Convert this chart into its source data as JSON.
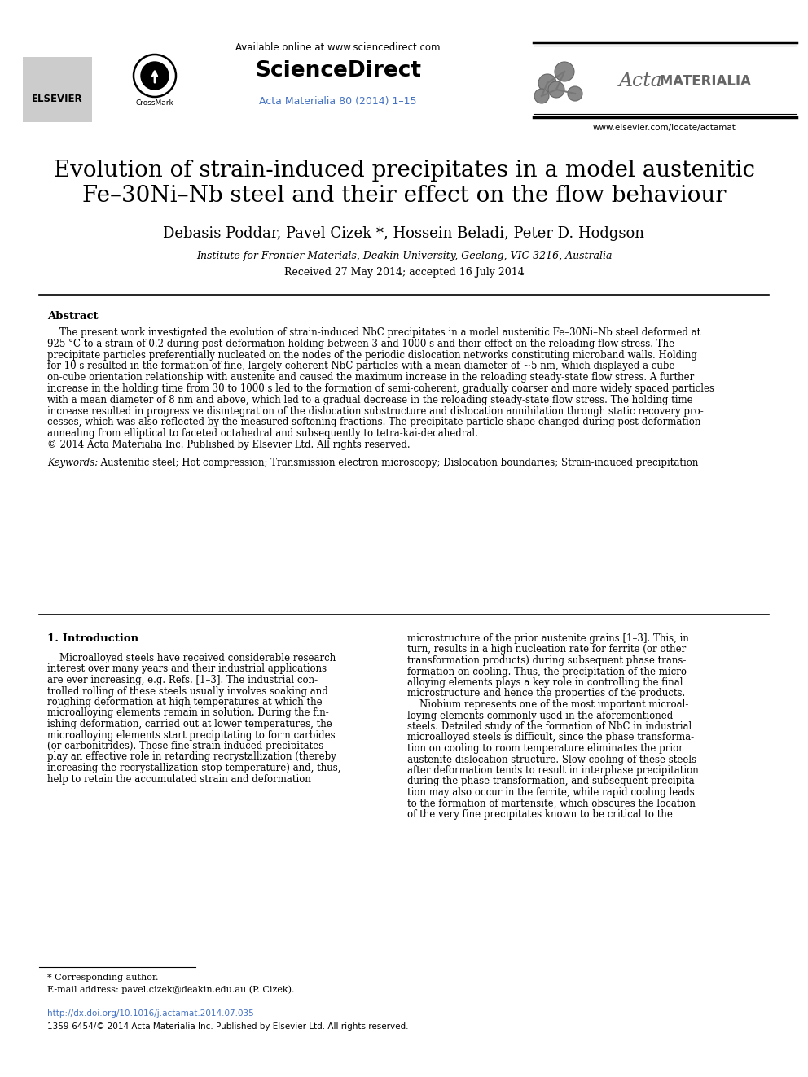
{
  "title_line1": "Evolution of strain-induced precipitates in a model austenitic",
  "title_line2": "Fe–30Ni–Nb steel and their effect on the flow behaviour",
  "authors": "Debasis Poddar, Pavel Cizek *, Hossein Beladi, Peter D. Hodgson",
  "affiliation": "Institute for Frontier Materials, Deakin University, Geelong, VIC 3216, Australia",
  "received": "Received 27 May 2014; accepted 16 July 2014",
  "available_online": "Available online at www.sciencedirect.com",
  "sciencedirect": "ScienceDirect",
  "journal_ref": "Acta Materialia 80 (2014) 1–15",
  "website": "www.elsevier.com/locate/actamat",
  "abstract_title": "Abstract",
  "abstract_lines": [
    "    The present work investigated the evolution of strain-induced NbC precipitates in a model austenitic Fe–30Ni–Nb steel deformed at",
    "925 °C to a strain of 0.2 during post-deformation holding between 3 and 1000 s and their effect on the reloading flow stress. The",
    "precipitate particles preferentially nucleated on the nodes of the periodic dislocation networks constituting microband walls. Holding",
    "for 10 s resulted in the formation of fine, largely coherent NbC particles with a mean diameter of ∼5 nm, which displayed a cube-",
    "on-cube orientation relationship with austenite and caused the maximum increase in the reloading steady-state flow stress. A further",
    "increase in the holding time from 30 to 1000 s led to the formation of semi-coherent, gradually coarser and more widely spaced particles",
    "with a mean diameter of 8 nm and above, which led to a gradual decrease in the reloading steady-state flow stress. The holding time",
    "increase resulted in progressive disintegration of the dislocation substructure and dislocation annihilation through static recovery pro-",
    "cesses, which was also reflected by the measured softening fractions. The precipitate particle shape changed during post-deformation",
    "annealing from elliptical to faceted octahedral and subsequently to tetra-kai-decahedral.",
    "© 2014 Acta Materialia Inc. Published by Elsevier Ltd. All rights reserved."
  ],
  "keywords_label": "Keywords:",
  "keywords_text": "  Austenitic steel; Hot compression; Transmission electron microscopy; Dislocation boundaries; Strain-induced precipitation",
  "section1_title": "1. Introduction",
  "intro_col1_lines": [
    "    Microalloyed steels have received considerable research",
    "interest over many years and their industrial applications",
    "are ever increasing, e.g. Refs. [1–3]. The industrial con-",
    "trolled rolling of these steels usually involves soaking and",
    "roughing deformation at high temperatures at which the",
    "microalloying elements remain in solution. During the fin-",
    "ishing deformation, carried out at lower temperatures, the",
    "microalloying elements start precipitating to form carbides",
    "(or carbonitrides). These fine strain-induced precipitates",
    "play an effective role in retarding recrystallization (thereby",
    "increasing the recrystallization-stop temperature) and, thus,",
    "help to retain the accumulated strain and deformation"
  ],
  "intro_col2_lines": [
    "microstructure of the prior austenite grains [1–3]. This, in",
    "turn, results in a high nucleation rate for ferrite (or other",
    "transformation products) during subsequent phase trans-",
    "formation on cooling. Thus, the precipitation of the micro-",
    "alloying elements plays a key role in controlling the final",
    "microstructure and hence the properties of the products.",
    "    Niobium represents one of the most important microal-",
    "loying elements commonly used in the aforementioned",
    "steels. Detailed study of the formation of NbC in industrial",
    "microalloyed steels is difficult, since the phase transforma-",
    "tion on cooling to room temperature eliminates the prior",
    "austenite dislocation structure. Slow cooling of these steels",
    "after deformation tends to result in interphase precipitation",
    "during the phase transformation, and subsequent precipita-",
    "tion may also occur in the ferrite, while rapid cooling leads",
    "to the formation of martensite, which obscures the location",
    "of the very fine precipitates known to be critical to the"
  ],
  "footnote_star": "* Corresponding author.",
  "footnote_email": "E-mail address: pavel.cizek@deakin.edu.au (P. Cizek).",
  "doi": "http://dx.doi.org/10.1016/j.actamat.2014.07.035",
  "issn": "1359-6454/© 2014 Acta Materialia Inc. Published by Elsevier Ltd. All rights reserved.",
  "bg_color": "#ffffff",
  "text_color": "#000000",
  "blue_color": "#4472C4",
  "acta_color": "#666666"
}
